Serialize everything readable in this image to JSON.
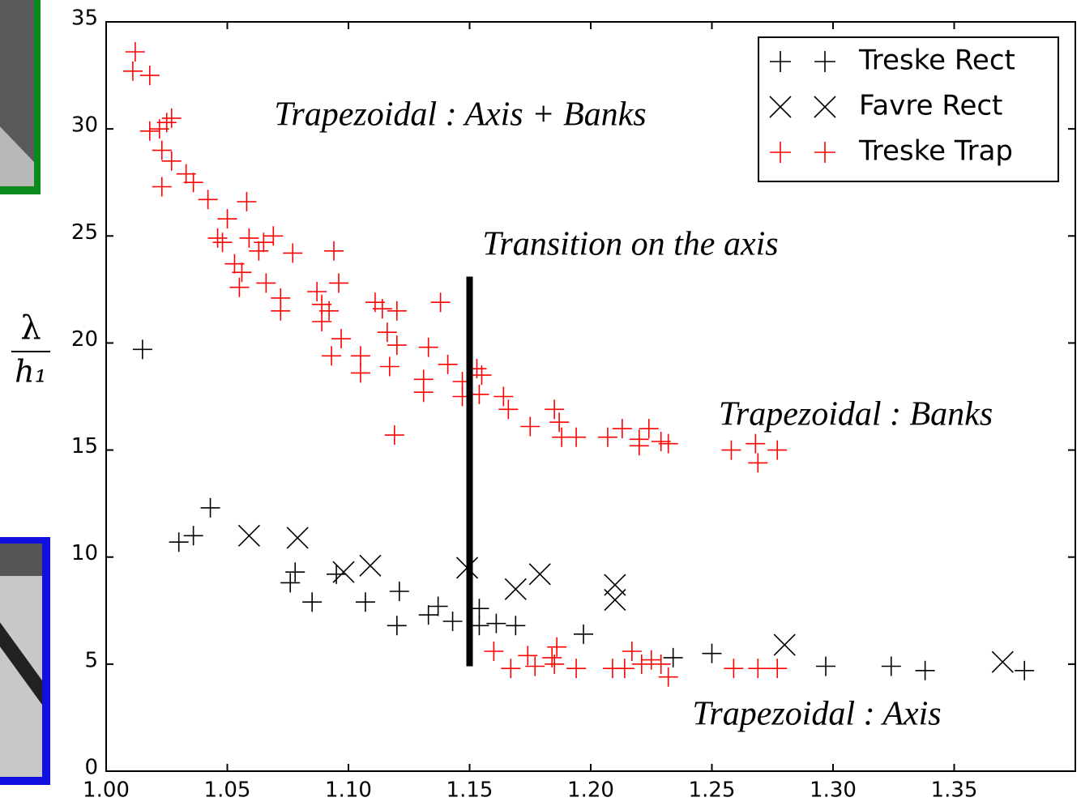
{
  "chart_data": {
    "type": "scatter",
    "ylabel": {
      "numerator": "λ",
      "denominator": "h₁"
    },
    "xlim": [
      1.0,
      1.4
    ],
    "ylim": [
      0,
      35
    ],
    "xticks": [
      {
        "value": 1.0,
        "label": "1.00"
      },
      {
        "value": 1.05,
        "label": "1.05"
      },
      {
        "value": 1.1,
        "label": "1.10"
      },
      {
        "value": 1.15,
        "label": "1.15"
      },
      {
        "value": 1.2,
        "label": "1.20"
      },
      {
        "value": 1.25,
        "label": "1.25"
      },
      {
        "value": 1.3,
        "label": "1.30"
      },
      {
        "value": 1.35,
        "label": "1.35"
      }
    ],
    "yticks": [
      0,
      5,
      10,
      15,
      20,
      25,
      30,
      35
    ],
    "grid": false,
    "legend": "upper right",
    "series": [
      {
        "name": "Treske Rect",
        "color": "#000000",
        "marker": "+",
        "x": [
          1.015,
          1.03,
          1.036,
          1.043,
          1.076,
          1.078,
          1.085,
          1.095,
          1.107,
          1.121,
          1.12,
          1.133,
          1.137,
          1.143,
          1.154,
          1.154,
          1.161,
          1.169,
          1.197,
          1.234,
          1.25,
          1.297,
          1.324,
          1.338,
          1.379
        ],
        "values": [
          19.7,
          10.7,
          11.0,
          12.3,
          8.8,
          9.3,
          7.9,
          9.2,
          7.9,
          8.4,
          6.8,
          7.3,
          7.7,
          7.0,
          7.6,
          6.8,
          6.9,
          6.8,
          6.4,
          5.3,
          5.5,
          4.9,
          4.9,
          4.7,
          4.7
        ]
      },
      {
        "name": "Favre Rect",
        "color": "#000000",
        "marker": "x",
        "x": [
          1.059,
          1.079,
          1.098,
          1.109,
          1.149,
          1.169,
          1.179,
          1.21,
          1.21,
          1.28,
          1.37
        ],
        "values": [
          11.0,
          10.9,
          9.3,
          9.6,
          9.5,
          8.5,
          9.2,
          8.7,
          8.0,
          5.9,
          5.1
        ]
      },
      {
        "name": "Treske Trap",
        "color": "#ff0000",
        "marker": "+",
        "x": [
          1.012,
          1.011,
          1.018,
          1.018,
          1.022,
          1.025,
          1.027,
          1.023,
          1.027,
          1.023,
          1.033,
          1.036,
          1.042,
          1.058,
          1.05,
          1.046,
          1.048,
          1.059,
          1.069,
          1.053,
          1.056,
          1.055,
          1.063,
          1.065,
          1.077,
          1.094,
          1.066,
          1.072,
          1.072,
          1.087,
          1.089,
          1.092,
          1.089,
          1.096,
          1.093,
          1.097,
          1.105,
          1.105,
          1.111,
          1.114,
          1.12,
          1.116,
          1.12,
          1.133,
          1.117,
          1.119,
          1.131,
          1.131,
          1.138,
          1.141,
          1.147,
          1.147,
          1.153,
          1.155,
          1.154,
          1.164,
          1.166,
          1.175,
          1.185,
          1.187,
          1.188,
          1.194,
          1.207,
          1.213,
          1.22,
          1.224,
          1.22,
          1.229,
          1.232,
          1.258,
          1.268,
          1.269,
          1.277,
          1.16,
          1.167,
          1.174,
          1.177,
          1.184,
          1.186,
          1.185,
          1.194,
          1.209,
          1.214,
          1.217,
          1.221,
          1.225,
          1.229,
          1.232,
          1.259,
          1.269,
          1.277
        ],
        "values": [
          33.6,
          32.7,
          32.5,
          29.9,
          30.0,
          30.3,
          30.5,
          29.0,
          28.5,
          27.3,
          27.9,
          27.5,
          26.7,
          26.6,
          25.8,
          24.9,
          24.7,
          24.9,
          25.0,
          23.7,
          23.3,
          22.6,
          24.3,
          24.7,
          24.2,
          24.3,
          22.8,
          22.1,
          21.5,
          22.4,
          21.8,
          21.5,
          21.0,
          22.8,
          19.4,
          20.2,
          19.4,
          18.6,
          21.9,
          21.6,
          21.5,
          20.5,
          19.9,
          19.8,
          18.9,
          15.7,
          18.3,
          17.7,
          21.9,
          19.0,
          18.2,
          17.5,
          18.8,
          18.5,
          17.6,
          17.5,
          16.9,
          16.1,
          16.9,
          16.3,
          15.6,
          15.6,
          15.6,
          16.0,
          15.5,
          16.0,
          15.2,
          15.4,
          15.3,
          15.0,
          15.3,
          14.4,
          15.0,
          5.6,
          4.8,
          5.4,
          4.9,
          5.3,
          5.8,
          5.0,
          4.8,
          4.8,
          4.8,
          5.6,
          5.0,
          5.2,
          5.0,
          4.4,
          4.8,
          4.8,
          4.8
        ]
      }
    ],
    "vline": {
      "x": 1.15,
      "y0": 4.9,
      "y1": 23.1
    },
    "annotations": [
      "Trapezoidal : Axis + Banks",
      "Transition on the axis",
      "Trapezoidal : Banks",
      "Trapezoidal : Axis"
    ]
  }
}
